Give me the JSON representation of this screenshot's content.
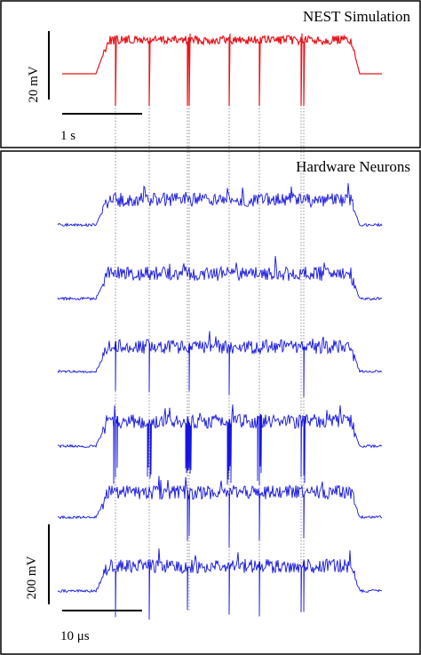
{
  "top_panel": {
    "title": "NEST Simulation",
    "scale_y": "20 mV",
    "scale_x": "1 s"
  },
  "bottom_panel": {
    "title": "Hardware Neurons",
    "scale_y": "200 mV",
    "scale_x": "10 μs"
  }
}
